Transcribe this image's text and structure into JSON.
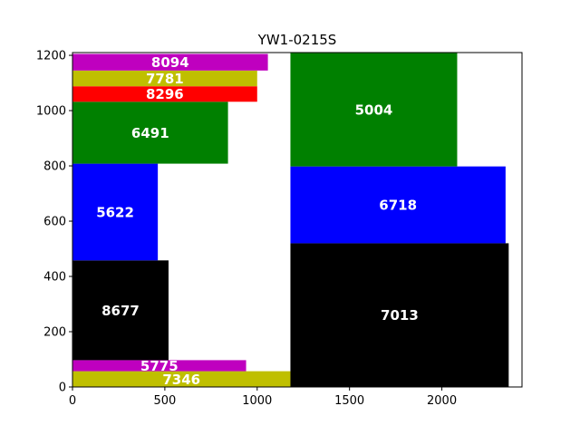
{
  "chart_data": {
    "type": "treemap",
    "title": "YW1-0215S",
    "xlabel": "",
    "ylabel": "",
    "xlim": [
      0,
      2434
    ],
    "ylim": [
      0,
      1210
    ],
    "xticks": [
      "0",
      "500",
      "1000",
      "1500",
      "2000"
    ],
    "xtick_values": [
      0,
      500,
      1000,
      1500,
      2000
    ],
    "yticks": [
      "0",
      "200",
      "400",
      "600",
      "800",
      "1000",
      "1200"
    ],
    "ytick_values": [
      0,
      200,
      400,
      600,
      800,
      1000,
      1200
    ],
    "grid": false,
    "rects": [
      {
        "label": "7346",
        "value": 7346,
        "x0": 0,
        "x1": 1180,
        "y0": 0,
        "y1": 57,
        "color": "#bfbf00"
      },
      {
        "label": "5775",
        "value": 5775,
        "x0": 0,
        "x1": 940,
        "y0": 57,
        "y1": 97,
        "color": "#bf00bf"
      },
      {
        "label": "8677",
        "value": 8677,
        "x0": 0,
        "x1": 520,
        "y0": 97,
        "y1": 458,
        "color": "#000000"
      },
      {
        "label": "5622",
        "value": 5622,
        "x0": 0,
        "x1": 462,
        "y0": 458,
        "y1": 808,
        "color": "#0000ff"
      },
      {
        "label": "6491",
        "value": 6491,
        "x0": 0,
        "x1": 842,
        "y0": 808,
        "y1": 1032,
        "color": "#008000"
      },
      {
        "label": "8296",
        "value": 8296,
        "x0": 0,
        "x1": 1000,
        "y0": 1032,
        "y1": 1088,
        "color": "#ff0000"
      },
      {
        "label": "7781",
        "value": 7781,
        "x0": 0,
        "x1": 1000,
        "y0": 1088,
        "y1": 1145,
        "color": "#bfbf00"
      },
      {
        "label": "8094",
        "value": 8094,
        "x0": 0,
        "x1": 1058,
        "y0": 1145,
        "y1": 1205,
        "color": "#bf00bf"
      },
      {
        "label": "7013",
        "value": 7013,
        "x0": 1180,
        "x1": 2362,
        "y0": 0,
        "y1": 520,
        "color": "#000000"
      },
      {
        "label": "6718",
        "value": 6718,
        "x0": 1180,
        "x1": 2345,
        "y0": 520,
        "y1": 798,
        "color": "#0000ff"
      },
      {
        "label": "5004",
        "value": 5004,
        "x0": 1180,
        "x1": 2083,
        "y0": 798,
        "y1": 1210,
        "color": "#008000"
      }
    ]
  }
}
